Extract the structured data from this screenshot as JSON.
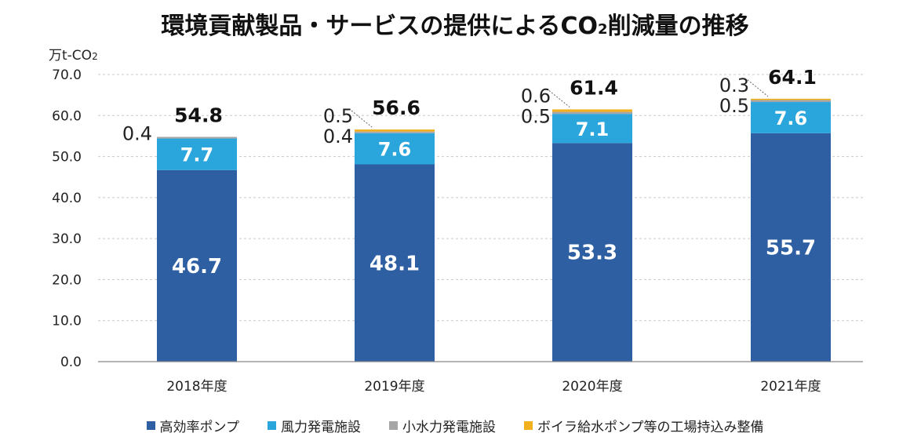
{
  "title": {
    "prefix": "環境貢献製品・サービスの提供によるCO",
    "subscript": "2",
    "suffix": "削減量の推移"
  },
  "y_unit": {
    "prefix": "万t-CO",
    "subscript": "2"
  },
  "colors": {
    "high_efficiency_pump": "#2e5fa3",
    "wind_power": "#2aa6dc",
    "small_hydro": "#a6a6a6",
    "boiler_pump": "#f2b01e",
    "grid": "#c8c8c8",
    "axis": "#888888"
  },
  "chart_data": {
    "type": "bar",
    "stacked": true,
    "categories": [
      "2018年度",
      "2019年度",
      "2020年度",
      "2021年度"
    ],
    "ylim": [
      0,
      70
    ],
    "yticks": [
      "0.0",
      "10.0",
      "20.0",
      "30.0",
      "40.0",
      "50.0",
      "60.0",
      "70.0"
    ],
    "grid": true,
    "legend_position": "bottom",
    "series": [
      {
        "name": "高効率ポンプ",
        "values": [
          46.7,
          48.1,
          53.3,
          55.7
        ],
        "labels": [
          "46.7",
          "48.1",
          "53.3",
          "55.7"
        ]
      },
      {
        "name": "風力発電施設",
        "values": [
          7.7,
          7.6,
          7.1,
          7.6
        ],
        "labels": [
          "7.7",
          "7.6",
          "7.1",
          "7.6"
        ]
      },
      {
        "name": "小水力発電施設",
        "values": [
          0.4,
          0.4,
          0.5,
          0.5
        ],
        "labels": [
          "0.4",
          "0.4",
          "0.5",
          "0.5"
        ]
      },
      {
        "name": "ボイラ給水ポンプ等の工場持込み整備",
        "values": [
          0,
          0.5,
          0.6,
          0.3
        ],
        "labels": [
          "",
          "0.5",
          "0.6",
          "0.3"
        ]
      }
    ],
    "totals": [
      "54.8",
      "56.6",
      "61.4",
      "64.1"
    ]
  }
}
